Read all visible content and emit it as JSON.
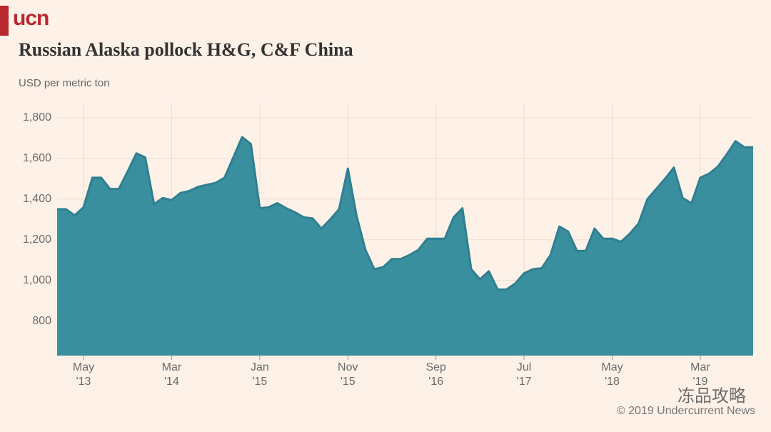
{
  "logo": "ucn",
  "chart_data": {
    "type": "area",
    "title": "Russian Alaska pollock H&G, C&F China",
    "y_axis_label": "USD per metric ton",
    "source": "© 2019 Undercurrent News",
    "watermark": "冻品攻略",
    "color": "#3a8f9f",
    "line_color": "#2e7f90",
    "grid": true,
    "x": [
      "2013-02",
      "2013-03",
      "2013-04",
      "2013-05",
      "2013-06",
      "2013-07",
      "2013-08",
      "2013-09",
      "2013-10",
      "2013-11",
      "2013-12",
      "2014-01",
      "2014-02",
      "2014-03",
      "2014-04",
      "2014-05",
      "2014-06",
      "2014-07",
      "2014-08",
      "2014-09",
      "2014-10",
      "2014-11",
      "2014-12",
      "2015-01",
      "2015-02",
      "2015-03",
      "2015-04",
      "2015-05",
      "2015-06",
      "2015-07",
      "2015-08",
      "2015-09",
      "2015-10",
      "2015-11",
      "2015-12",
      "2016-01",
      "2016-02",
      "2016-03",
      "2016-04",
      "2016-05",
      "2016-06",
      "2016-07",
      "2016-08",
      "2016-09",
      "2016-10",
      "2016-11",
      "2016-12",
      "2017-01",
      "2017-02",
      "2017-03",
      "2017-04",
      "2017-05",
      "2017-06",
      "2017-07",
      "2017-08",
      "2017-09",
      "2017-10",
      "2017-11",
      "2017-12",
      "2018-01",
      "2018-02",
      "2018-03",
      "2018-04",
      "2018-05",
      "2018-06",
      "2018-07",
      "2018-08",
      "2018-09",
      "2018-10",
      "2018-11",
      "2018-12",
      "2019-01",
      "2019-02",
      "2019-03",
      "2019-04",
      "2019-05",
      "2019-06",
      "2019-07",
      "2019-08",
      "2019-09"
    ],
    "values": [
      1350,
      1350,
      1320,
      1360,
      1505,
      1505,
      1450,
      1450,
      1535,
      1625,
      1605,
      1375,
      1405,
      1395,
      1430,
      1440,
      1460,
      1470,
      1480,
      1505,
      1605,
      1705,
      1670,
      1355,
      1360,
      1380,
      1355,
      1335,
      1310,
      1305,
      1255,
      1300,
      1350,
      1550,
      1315,
      1150,
      1055,
      1065,
      1105,
      1105,
      1125,
      1150,
      1205,
      1205,
      1205,
      1310,
      1355,
      1055,
      1005,
      1045,
      955,
      955,
      985,
      1035,
      1055,
      1060,
      1125,
      1265,
      1240,
      1145,
      1145,
      1255,
      1205,
      1205,
      1190,
      1230,
      1280,
      1400,
      1450,
      1500,
      1555,
      1405,
      1380,
      1505,
      1525,
      1560,
      1620,
      1685,
      1655,
      1655
    ],
    "ylim": [
      630,
      1870
    ],
    "yticks": [
      800,
      {
        "value": 1000,
        "label": "1,000"
      },
      {
        "value": 1200,
        "label": "1,200"
      },
      {
        "value": 1400,
        "label": "1,400"
      },
      {
        "value": 1600,
        "label": "1,600"
      },
      {
        "value": 1800,
        "label": "1,800"
      }
    ],
    "xticks": [
      {
        "value": "2013-05",
        "label": "May",
        "sublabel": "'13"
      },
      {
        "value": "2014-03",
        "label": "Mar",
        "sublabel": "'14"
      },
      {
        "value": "2015-01",
        "label": "Jan",
        "sublabel": "'15"
      },
      {
        "value": "2015-11",
        "label": "Nov",
        "sublabel": "'15"
      },
      {
        "value": "2016-09",
        "label": "Sep",
        "sublabel": "'16"
      },
      {
        "value": "2017-07",
        "label": "Jul",
        "sublabel": "'17"
      },
      {
        "value": "2018-05",
        "label": "May",
        "sublabel": "'18"
      },
      {
        "value": "2019-03",
        "label": "Mar",
        "sublabel": "'19"
      }
    ]
  }
}
